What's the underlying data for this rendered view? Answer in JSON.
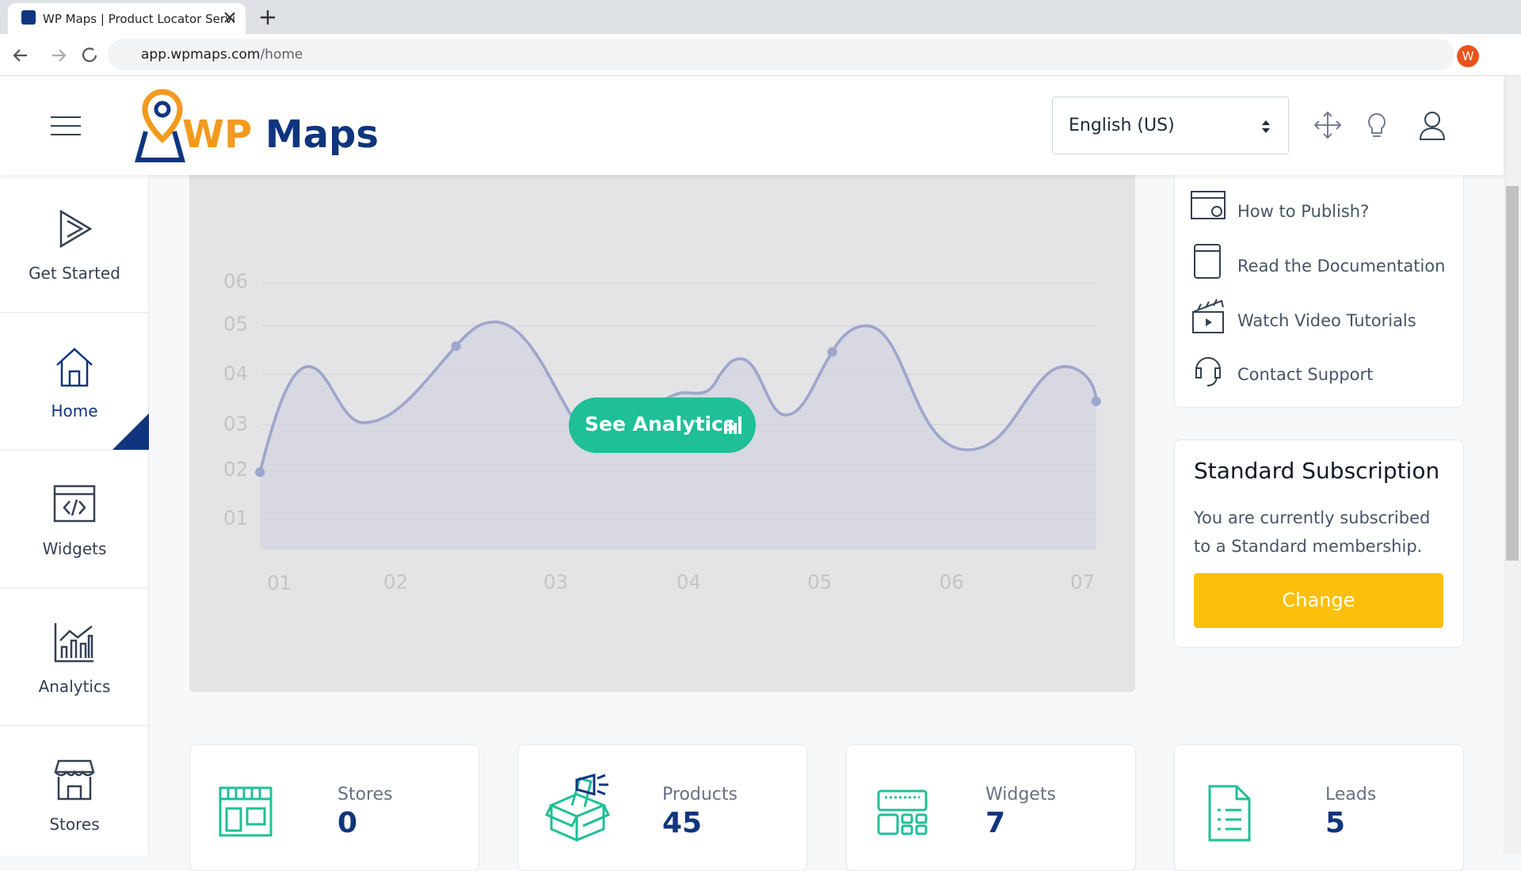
{
  "browser": {
    "tab_title": "WP Maps | Product Locator Servi",
    "url_host": "app.wpmaps.com",
    "url_path": "/home",
    "avatar": "W"
  },
  "header": {
    "logo_wp": "WP",
    "logo_maps": "Maps",
    "language": "English (US)"
  },
  "sidebar": {
    "items": [
      "Get Started",
      "Home",
      "Widgets",
      "Analytics",
      "Stores"
    ]
  },
  "chart": {
    "y_labels": [
      "06",
      "05",
      "04",
      "03",
      "02",
      "01"
    ],
    "x_labels": [
      "01",
      "02",
      "03",
      "04",
      "05",
      "06",
      "07"
    ],
    "button": "See Analytics"
  },
  "help_links": [
    "How to Publish?",
    "Read the Documentation",
    "Watch Video Tutorials",
    "Contact Support"
  ],
  "subscription": {
    "title": "Standard Subscription",
    "text_line1": "You are currently subscribed",
    "text_line2": "to a Standard membership.",
    "button": "Change"
  },
  "stats": [
    {
      "label": "Stores",
      "value": "0"
    },
    {
      "label": "Products",
      "value": "45"
    },
    {
      "label": "Widgets",
      "value": "7"
    },
    {
      "label": "Leads",
      "value": "5"
    }
  ]
}
